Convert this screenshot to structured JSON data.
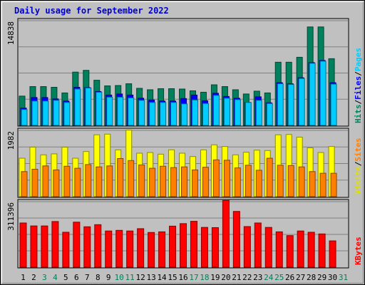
{
  "chart_data": {
    "type": "bar",
    "title": "Daily usage for September 2022",
    "categories": [
      "1",
      "2",
      "3",
      "4",
      "5",
      "6",
      "7",
      "8",
      "9",
      "10",
      "11",
      "12",
      "13",
      "14",
      "15",
      "16",
      "17",
      "18",
      "19",
      "20",
      "21",
      "22",
      "23",
      "24",
      "25",
      "26",
      "27",
      "28",
      "29",
      "30",
      "31"
    ],
    "weekend_days": [
      "3",
      "4",
      "10",
      "11",
      "17",
      "18",
      "24",
      "25",
      "31"
    ],
    "panels": [
      {
        "name": "hits-files-pages",
        "max_label": "14838",
        "right_labels": [
          "Pages",
          "Files",
          "Hits"
        ],
        "ylim": [
          0,
          14838
        ],
        "series": [
          {
            "name": "Hits",
            "color": "#00805c",
            "values": [
              4150,
              5500,
              5500,
              5400,
              4600,
              7550,
              7800,
              6400,
              5600,
              5650,
              5900,
              5250,
              5050,
              5200,
              5200,
              5150,
              4900,
              4700,
              5750,
              5500,
              5050,
              4450,
              4850,
              4600,
              8950,
              8950,
              9650,
              13950,
              13950,
              9450,
              0
            ]
          },
          {
            "name": "Files",
            "color": "#0000ff",
            "values": [
              2450,
              3950,
              3950,
              3750,
              3450,
              5400,
              5350,
              4800,
              4300,
              4450,
              4300,
              3850,
              3600,
              3450,
              3450,
              3800,
              4300,
              3500,
              4550,
              4100,
              3850,
              3250,
              4050,
              3200,
              6050,
              5900,
              6750,
              8900,
              9200,
              6050,
              0
            ]
          },
          {
            "name": "Pages",
            "color": "#00ccff",
            "values": [
              2250,
              3450,
              3450,
              3550,
              3250,
              5150,
              5300,
              4700,
              4000,
              4000,
              3900,
              3550,
              3250,
              3250,
              3250,
              3050,
              3600,
              3100,
              4250,
              3850,
              3650,
              3250,
              3550,
              3100,
              5900,
              5800,
              6650,
              8800,
              9100,
              5850,
              0
            ]
          }
        ]
      },
      {
        "name": "visits-sites",
        "max_label": "1982",
        "right_labels": [
          "Sites",
          "Visits"
        ],
        "ylim": [
          0,
          1982
        ],
        "series": [
          {
            "name": "Visits",
            "color": "#ffff00",
            "values": [
              1150,
              1480,
              1250,
              1280,
              1480,
              1150,
              1350,
              1850,
              1870,
              1400,
              1990,
              1300,
              1320,
              1270,
              1400,
              1300,
              1200,
              1400,
              1550,
              1500,
              1250,
              1330,
              1390,
              1380,
              1850,
              1860,
              1780,
              1460,
              1320,
              1500,
              0
            ]
          },
          {
            "name": "Sites",
            "color": "#ff8000",
            "values": [
              750,
              820,
              920,
              800,
              910,
              850,
              960,
              890,
              920,
              1140,
              1080,
              950,
              850,
              910,
              870,
              890,
              800,
              880,
              1100,
              1090,
              860,
              940,
              790,
              1150,
              940,
              930,
              890,
              750,
              700,
              700,
              0
            ]
          }
        ]
      },
      {
        "name": "kbytes",
        "max_label": "311396",
        "right_labels": [
          "KBytes"
        ],
        "ylim": [
          0,
          311396
        ],
        "series": [
          {
            "name": "KBytes",
            "color": "#ff0000",
            "values": [
              210000,
              196000,
              196000,
              217000,
              166000,
              214000,
              192000,
              202000,
              172000,
              175000,
              172000,
              183000,
              165000,
              168000,
              195000,
              207000,
              218000,
              189000,
              188000,
              317000,
              265000,
              193000,
              210000,
              189000,
              168000,
              150000,
              172000,
              166000,
              158000,
              125000,
              0
            ]
          }
        ]
      }
    ]
  }
}
